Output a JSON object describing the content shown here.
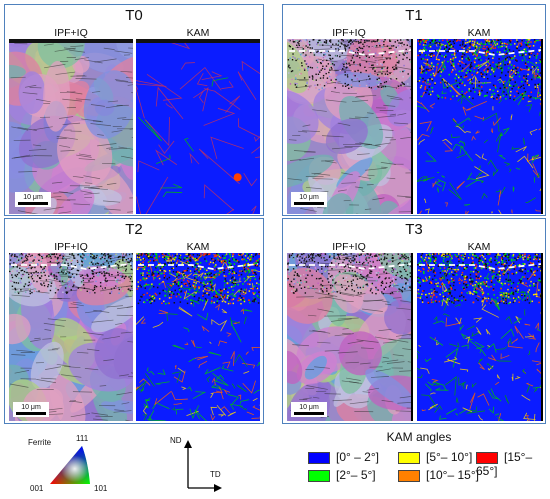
{
  "panels": [
    {
      "title": "T0",
      "left_label": "IPF+IQ",
      "right_label": "KAM",
      "scale": "10 μm"
    },
    {
      "title": "T1",
      "left_label": "IPF+IQ",
      "right_label": "KAM",
      "scale": "10 μm"
    },
    {
      "title": "T2",
      "left_label": "IPF+IQ",
      "right_label": "KAM",
      "scale": "10 μm"
    },
    {
      "title": "T3",
      "left_label": "IPF+IQ",
      "right_label": "KAM",
      "scale": "10 μm"
    }
  ],
  "ipf_key": {
    "phase": "Ferrite",
    "top": "111",
    "left": "001",
    "right": "101"
  },
  "axes_key": {
    "vertical": "ND",
    "horizontal": "TD"
  },
  "kam_legend": {
    "title": "KAM angles",
    "items": [
      {
        "label": "[0° – 2°]",
        "color": "#0000ff"
      },
      {
        "label": "[5°– 10°]",
        "color": "#ffff00"
      },
      {
        "label": "[15°– 65°]",
        "color": "#ff0000"
      },
      {
        "label": "[2°– 5°]",
        "color": "#00ff00"
      },
      {
        "label": "[10°– 15°]",
        "color": "#ff8000"
      }
    ]
  }
}
